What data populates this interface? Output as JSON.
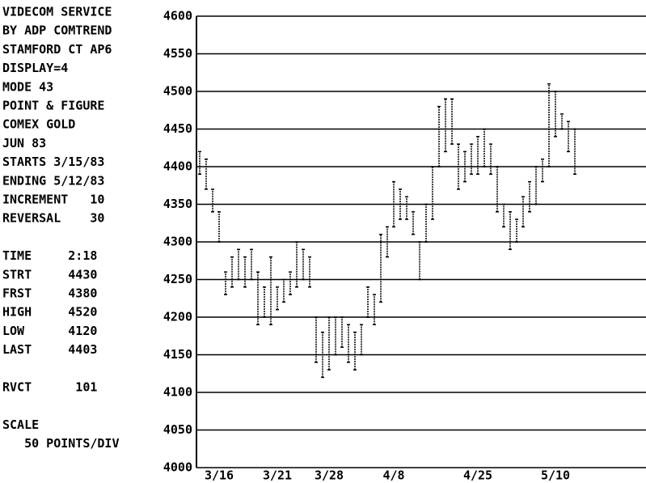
{
  "chart_data": {
    "type": "range-bar",
    "info_lines": [
      "VIDECOM SERVICE",
      "BY ADP COMTREND",
      "STAMFORD CT AP6",
      "DISPLAY=4",
      "MODE 43",
      "POINT & FIGURE",
      "COMEX GOLD",
      "JUN 83",
      "STARTS 3/15/83",
      "ENDING 5/12/83",
      "INCREMENT   10",
      "REVERSAL    30",
      "TIME     2:18",
      "STRT     4430",
      "FRST     4380",
      "HIGH     4520",
      "LOW      4120",
      "LAST     4403",
      "RVCT      101",
      "SCALE",
      "   50 POINTS/DIV"
    ],
    "categories": [
      null,
      null,
      null,
      "3/16",
      null,
      null,
      null,
      null,
      null,
      null,
      null,
      null,
      "3/21",
      null,
      null,
      null,
      null,
      null,
      null,
      null,
      "3/28",
      null,
      null,
      null,
      null,
      null,
      null,
      null,
      null,
      null,
      "4/8",
      null,
      null,
      null,
      null,
      null,
      null,
      null,
      null,
      null,
      null,
      null,
      null,
      "4/25",
      null,
      null,
      null,
      null,
      null,
      null,
      null,
      null,
      null,
      null,
      null,
      "5/10",
      null,
      null,
      null
    ],
    "lows": [
      4390,
      4370,
      4340,
      4300,
      4230,
      4240,
      4250,
      4240,
      4250,
      4190,
      4200,
      4190,
      4210,
      4220,
      4230,
      4240,
      4250,
      4240,
      4140,
      4120,
      4130,
      4150,
      4160,
      4140,
      4130,
      4150,
      4200,
      4190,
      4220,
      4280,
      4320,
      4330,
      4330,
      4310,
      4250,
      4300,
      4330,
      4400,
      4420,
      4430,
      4370,
      4380,
      4390,
      4390,
      4400,
      4390,
      4340,
      4320,
      4290,
      4300,
      4320,
      4340,
      4350,
      4380,
      4400,
      4440,
      4450,
      4420,
      4390
    ],
    "highs": [
      4420,
      4410,
      4370,
      4340,
      4260,
      4280,
      4290,
      4280,
      4290,
      4260,
      4240,
      4280,
      4240,
      4250,
      4260,
      4300,
      4290,
      4280,
      4200,
      4180,
      4200,
      4200,
      4200,
      4190,
      4180,
      4190,
      4240,
      4230,
      4310,
      4320,
      4380,
      4370,
      4360,
      4340,
      4300,
      4350,
      4400,
      4480,
      4490,
      4490,
      4430,
      4420,
      4430,
      4440,
      4450,
      4430,
      4400,
      4350,
      4340,
      4330,
      4360,
      4380,
      4400,
      4410,
      4510,
      4500,
      4470,
      4460,
      4450
    ],
    "color": "#000000",
    "ylim": [
      4000,
      4600
    ],
    "yticks": [
      4000,
      4050,
      4100,
      4150,
      4200,
      4250,
      4300,
      4350,
      4400,
      4450,
      4500,
      4550,
      4600
    ],
    "grid": true
  }
}
